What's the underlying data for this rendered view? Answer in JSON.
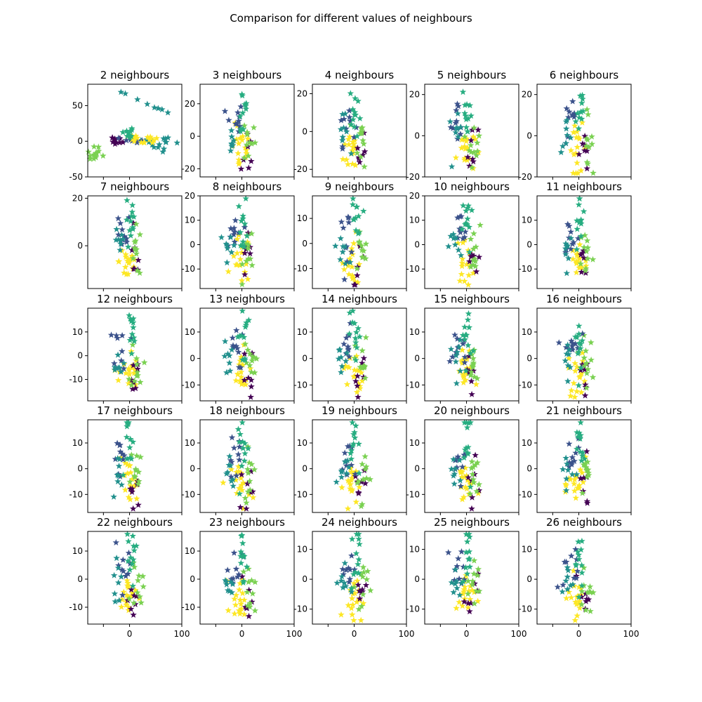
{
  "figure": {
    "suptitle": "Comparison for different values of neighbours"
  },
  "colors": {
    "class_0": "#440154",
    "class_1": "#3b528b",
    "class_2": "#21908d",
    "class_3": "#27ad81",
    "class_4": "#7ad151",
    "class_5": "#fde725"
  },
  "chart_data": [
    {
      "type": "scatter",
      "title": "2 neighbours",
      "marker": "star",
      "grid": false,
      "xlim": [
        -80,
        100
      ],
      "ylim": [
        -50,
        80
      ],
      "xticks": [],
      "yticks": [
        -50,
        0,
        50
      ]
    },
    {
      "type": "scatter",
      "title": "3 neighbours",
      "marker": "star",
      "grid": false,
      "xlim": [
        -80,
        100
      ],
      "ylim": [
        -25,
        32
      ],
      "xticks": [],
      "yticks": [
        -20,
        0,
        20
      ]
    },
    {
      "type": "scatter",
      "title": "4 neighbours",
      "marker": "star",
      "grid": false,
      "xlim": [
        -80,
        100
      ],
      "ylim": [
        -24,
        25
      ],
      "xticks": [],
      "yticks": [
        -20,
        0,
        20
      ]
    },
    {
      "type": "scatter",
      "title": "5 neighbours",
      "marker": "star",
      "grid": false,
      "xlim": [
        -80,
        100
      ],
      "ylim": [
        -20,
        25
      ],
      "xticks": [],
      "yticks": [
        -20,
        0,
        20
      ]
    },
    {
      "type": "scatter",
      "title": "6 neighbours",
      "marker": "star",
      "grid": false,
      "xlim": [
        -80,
        100
      ],
      "ylim": [
        -20,
        25
      ],
      "xticks": [],
      "yticks": [
        -20,
        0,
        20
      ]
    },
    {
      "type": "scatter",
      "title": "7 neighbours",
      "marker": "star",
      "grid": false,
      "xlim": [
        -80,
        100
      ],
      "ylim": [
        -18,
        21
      ],
      "xticks": [],
      "yticks": [
        0,
        20
      ]
    },
    {
      "type": "scatter",
      "title": "8 neighbours",
      "marker": "star",
      "grid": false,
      "xlim": [
        -80,
        100
      ],
      "ylim": [
        -18,
        20
      ],
      "xticks": [],
      "yticks": [
        -10,
        0,
        10,
        20
      ]
    },
    {
      "type": "scatter",
      "title": "9 neighbours",
      "marker": "star",
      "grid": false,
      "xlim": [
        -80,
        100
      ],
      "ylim": [
        -18,
        19
      ],
      "xticks": [],
      "yticks": [
        -10,
        0,
        10
      ]
    },
    {
      "type": "scatter",
      "title": "10 neighbours",
      "marker": "star",
      "grid": false,
      "xlim": [
        -80,
        100
      ],
      "ylim": [
        -18,
        20
      ],
      "xticks": [],
      "yticks": [
        -10,
        0,
        10,
        20
      ]
    },
    {
      "type": "scatter",
      "title": "11 neighbours",
      "marker": "star",
      "grid": false,
      "xlim": [
        -80,
        100
      ],
      "ylim": [
        -18,
        20
      ],
      "xticks": [],
      "yticks": [
        -10,
        0,
        10
      ]
    },
    {
      "type": "scatter",
      "title": "12 neighbours",
      "marker": "star",
      "grid": false,
      "xlim": [
        -80,
        100
      ],
      "ylim": [
        -19,
        20
      ],
      "xticks": [],
      "yticks": [
        -10,
        0,
        10
      ]
    },
    {
      "type": "scatter",
      "title": "13 neighbours",
      "marker": "star",
      "grid": false,
      "xlim": [
        -80,
        100
      ],
      "ylim": [
        -16,
        19
      ],
      "xticks": [],
      "yticks": [
        -10,
        0,
        10
      ]
    },
    {
      "type": "scatter",
      "title": "14 neighbours",
      "marker": "star",
      "grid": false,
      "xlim": [
        -80,
        100
      ],
      "ylim": [
        -16,
        19
      ],
      "xticks": [],
      "yticks": [
        -10,
        0,
        10
      ]
    },
    {
      "type": "scatter",
      "title": "15 neighbours",
      "marker": "star",
      "grid": false,
      "xlim": [
        -80,
        100
      ],
      "ylim": [
        -16,
        19
      ],
      "xticks": [],
      "yticks": [
        -10,
        0,
        10
      ]
    },
    {
      "type": "scatter",
      "title": "16 neighbours",
      "marker": "star",
      "grid": false,
      "xlim": [
        -80,
        100
      ],
      "ylim": [
        -16,
        19
      ],
      "xticks": [],
      "yticks": [
        -10,
        0,
        10
      ]
    },
    {
      "type": "scatter",
      "title": "17 neighbours",
      "marker": "star",
      "grid": false,
      "xlim": [
        -80,
        100
      ],
      "ylim": [
        -17,
        19
      ],
      "xticks": [],
      "yticks": [
        -10,
        0,
        10
      ]
    },
    {
      "type": "scatter",
      "title": "18 neighbours",
      "marker": "star",
      "grid": false,
      "xlim": [
        -80,
        100
      ],
      "ylim": [
        -17,
        19
      ],
      "xticks": [],
      "yticks": [
        -10,
        0,
        10
      ]
    },
    {
      "type": "scatter",
      "title": "19 neighbours",
      "marker": "star",
      "grid": false,
      "xlim": [
        -80,
        100
      ],
      "ylim": [
        -17,
        19
      ],
      "xticks": [],
      "yticks": [
        -10,
        0,
        10
      ]
    },
    {
      "type": "scatter",
      "title": "20 neighbours",
      "marker": "star",
      "grid": false,
      "xlim": [
        -80,
        100
      ],
      "ylim": [
        -17,
        19
      ],
      "xticks": [],
      "yticks": [
        -10,
        0,
        10
      ]
    },
    {
      "type": "scatter",
      "title": "21 neighbours",
      "marker": "star",
      "grid": false,
      "xlim": [
        -80,
        100
      ],
      "ylim": [
        -17,
        19
      ],
      "xticks": [],
      "yticks": [
        -10,
        0,
        10
      ]
    },
    {
      "type": "scatter",
      "title": "22 neighbours",
      "marker": "star",
      "grid": false,
      "xlim": [
        -80,
        100
      ],
      "ylim": [
        -16,
        17
      ],
      "xticks": [
        -50,
        0,
        100
      ],
      "xticklabels": [
        "",
        "0",
        "100"
      ],
      "yticks": [
        -10,
        0,
        10
      ]
    },
    {
      "type": "scatter",
      "title": "23 neighbours",
      "marker": "star",
      "grid": false,
      "xlim": [
        -80,
        100
      ],
      "ylim": [
        -16,
        17
      ],
      "xticks": [
        -50,
        0,
        100
      ],
      "xticklabels": [
        "",
        "0",
        "100"
      ],
      "yticks": [
        -10,
        0,
        10
      ]
    },
    {
      "type": "scatter",
      "title": "24 neighbours",
      "marker": "star",
      "grid": false,
      "xlim": [
        -80,
        100
      ],
      "ylim": [
        -15,
        16
      ],
      "xticks": [
        -50,
        0,
        100
      ],
      "xticklabels": [
        "",
        "0",
        "100"
      ],
      "yticks": [
        -10,
        0,
        10
      ]
    },
    {
      "type": "scatter",
      "title": "25 neighbours",
      "marker": "star",
      "grid": false,
      "xlim": [
        -80,
        100
      ],
      "ylim": [
        -15,
        16
      ],
      "xticks": [
        -50,
        0,
        100
      ],
      "xticklabels": [
        "",
        "0",
        "100"
      ],
      "yticks": [
        -10,
        0,
        10
      ]
    },
    {
      "type": "scatter",
      "title": "26 neighbours",
      "marker": "star",
      "grid": false,
      "xlim": [
        -80,
        100
      ],
      "ylim": [
        -15,
        16
      ],
      "xticks": [
        -50,
        0,
        100
      ],
      "xticklabels": [
        "",
        "0",
        "100"
      ],
      "yticks": [
        -10,
        0,
        10
      ]
    }
  ]
}
